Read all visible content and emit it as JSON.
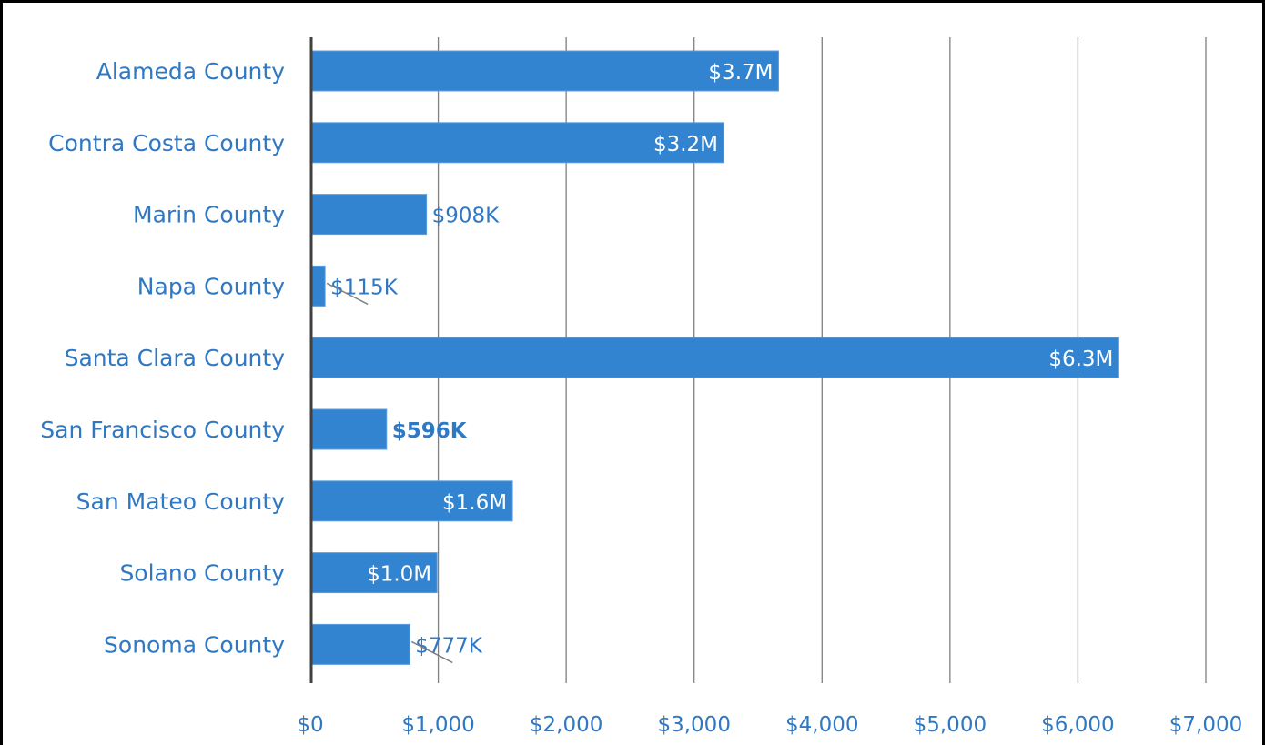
{
  "chart_data": {
    "type": "bar",
    "orientation": "horizontal",
    "categories": [
      "Alameda County",
      "Contra Costa County",
      "Marin County",
      "Napa County",
      "Santa Clara County",
      "San Francisco County",
      "San Mateo County",
      "Solano County",
      "Sonoma County"
    ],
    "values": [
      3660,
      3230,
      908,
      115,
      6320,
      596,
      1580,
      990,
      777
    ],
    "data_labels": [
      "$3.7M",
      "$3.2M",
      "$908K",
      "$115K",
      "$6.3M",
      "$596K",
      "$1.6M",
      "$1.0M",
      "$777K"
    ],
    "label_position": [
      "inside",
      "inside",
      "outside",
      "outside",
      "inside",
      "outside",
      "inside",
      "inside",
      "outside"
    ],
    "label_bold": [
      false,
      false,
      false,
      false,
      false,
      true,
      false,
      false,
      false
    ],
    "x_ticks": [
      "$0",
      "$1,000",
      "$2,000",
      "$3,000",
      "$4,000",
      "$5,000",
      "$6,000",
      "$7,000"
    ],
    "xlim": [
      0,
      7000
    ],
    "grid": true,
    "legend": false,
    "title": "",
    "xlabel": "",
    "ylabel": "",
    "colors": {
      "bar": "#3384d0",
      "bar_edge": "#5d9fe0",
      "label_text": "#2f78c4",
      "inside_label": "#ffffff",
      "gridline": "#808080",
      "axis": "#404040"
    }
  }
}
